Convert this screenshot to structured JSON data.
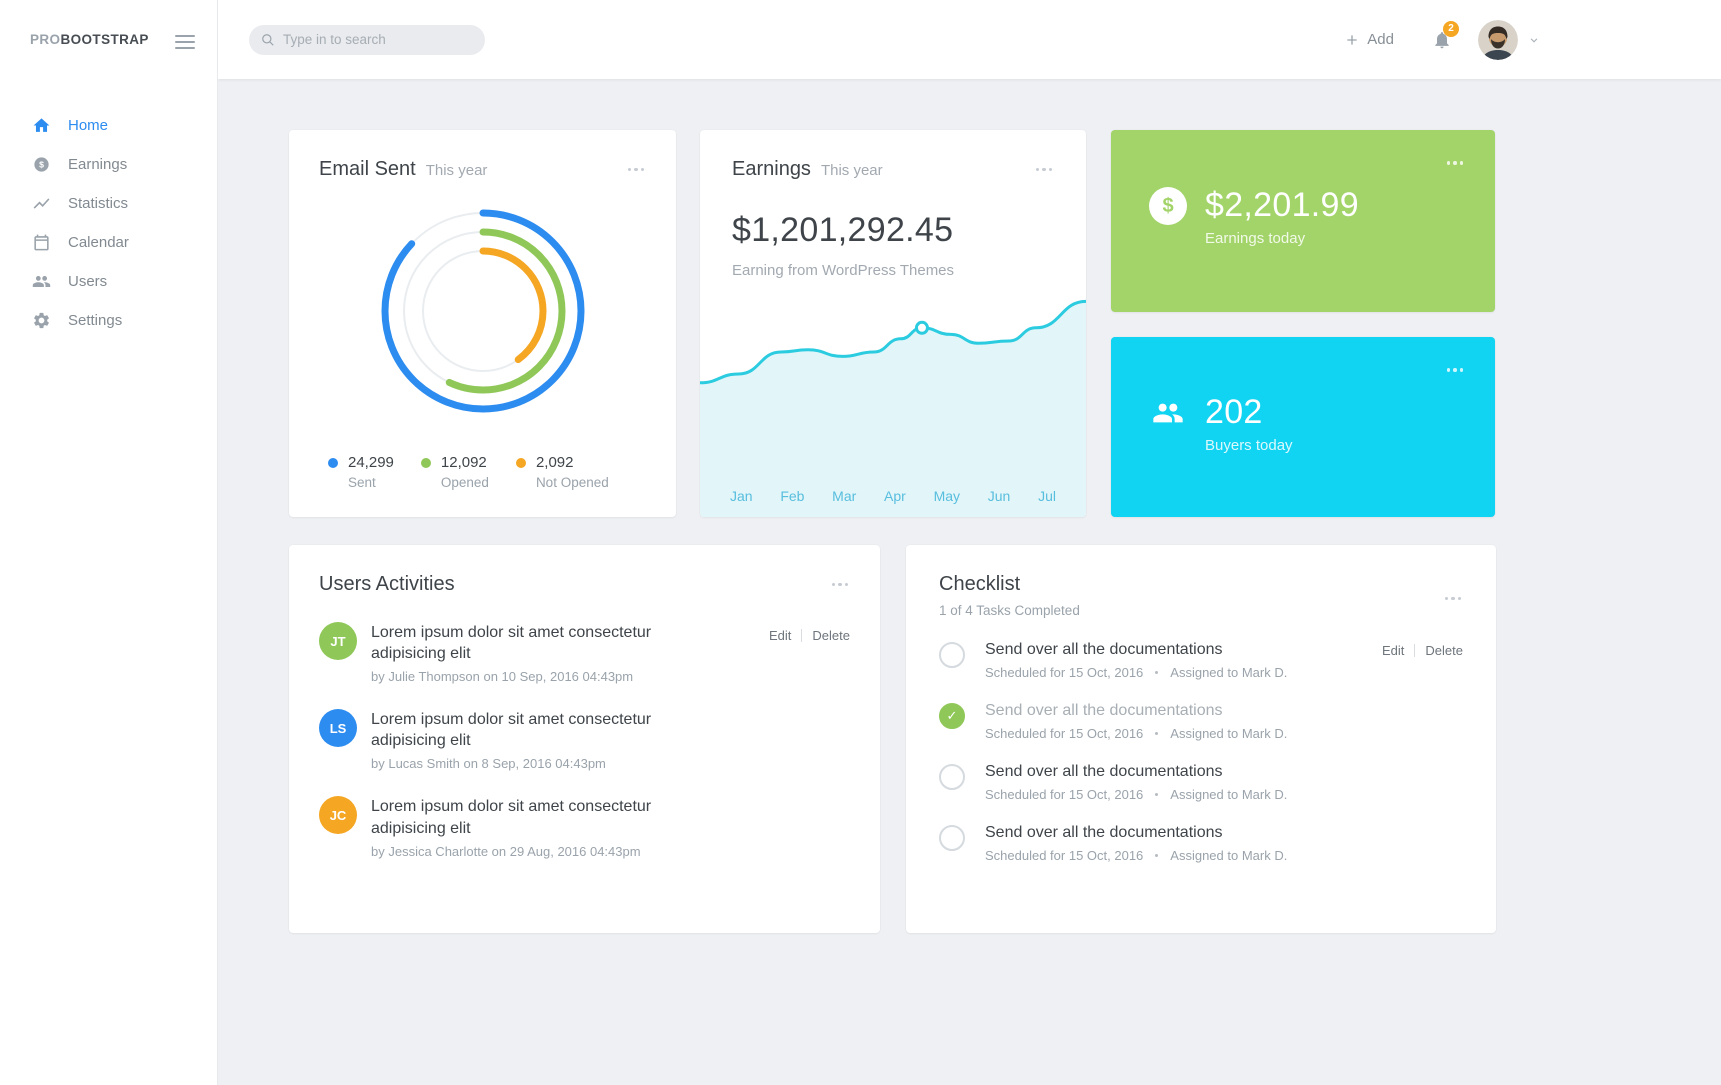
{
  "brand": {
    "pro": "PRO",
    "bold": "BOOTSTRAP"
  },
  "colors": {
    "accent_blue": "#2d8cf0",
    "green": "#8fc858",
    "orange": "#f5a623",
    "line_cyan": "#2bcbe0",
    "fill_cyan": "#e2f6fa"
  },
  "topbar": {
    "search_placeholder": "Type in to search",
    "add_label": "Add",
    "notification_count": "2"
  },
  "sidebar": {
    "items": [
      {
        "label": "Home",
        "active": true
      },
      {
        "label": "Earnings",
        "active": false
      },
      {
        "label": "Statistics",
        "active": false
      },
      {
        "label": "Calendar",
        "active": false
      },
      {
        "label": "Users",
        "active": false
      },
      {
        "label": "Settings",
        "active": false
      }
    ]
  },
  "email_sent": {
    "title": "Email Sent",
    "subtitle": "This year",
    "legend": [
      {
        "value": "24,299",
        "label": "Sent",
        "color": "#2d8cf0"
      },
      {
        "value": "12,092",
        "label": "Opened",
        "color": "#8fc858"
      },
      {
        "value": "2,092",
        "label": "Not Opened",
        "color": "#f5a623"
      }
    ]
  },
  "earnings_card": {
    "title": "Earnings",
    "subtitle": "This year",
    "amount": "$1,201,292.45",
    "caption": "Earning from WordPress Themes",
    "months": [
      "Jan",
      "Feb",
      "Mar",
      "Apr",
      "May",
      "Jun",
      "Jul"
    ]
  },
  "stat_cards": [
    {
      "value": "$2,201.99",
      "label": "Earnings today",
      "bg": "#a3d469"
    },
    {
      "value": "202",
      "label": "Buyers today",
      "bg": "#11d3f2"
    }
  ],
  "activities": {
    "title": "Users Activities",
    "edit_label": "Edit",
    "delete_label": "Delete",
    "items": [
      {
        "initials": "JT",
        "color": "#8fc858",
        "text": "Lorem ipsum dolor sit amet consectetur adipisicing elit",
        "meta": "by Julie Thompson on 10 Sep, 2016 04:43pm"
      },
      {
        "initials": "LS",
        "color": "#2d8cf0",
        "text": "Lorem ipsum dolor sit amet consectetur adipisicing elit",
        "meta": "by Lucas Smith on 8 Sep, 2016 04:43pm"
      },
      {
        "initials": "JC",
        "color": "#f5a623",
        "text": "Lorem ipsum dolor sit amet consectetur adipisicing elit",
        "meta": "by Jessica Charlotte on 29 Aug, 2016 04:43pm"
      }
    ]
  },
  "checklist": {
    "title": "Checklist",
    "subtitle": "1 of 4 Tasks Completed",
    "edit_label": "Edit",
    "delete_label": "Delete",
    "items": [
      {
        "title": "Send over all the documentations",
        "scheduled": "Scheduled for 15 Oct, 2016",
        "assigned": "Assigned to Mark D.",
        "checked": false
      },
      {
        "title": "Send over all the documentations",
        "scheduled": "Scheduled for 15 Oct, 2016",
        "assigned": "Assigned to Mark D.",
        "checked": true
      },
      {
        "title": "Send over all the documentations",
        "scheduled": "Scheduled for 15 Oct, 2016",
        "assigned": "Assigned to Mark D.",
        "checked": false
      },
      {
        "title": "Send over all the documentations",
        "scheduled": "Scheduled for 15 Oct, 2016",
        "assigned": "Assigned to Mark D.",
        "checked": false
      }
    ]
  },
  "icons": {
    "dollar": "$",
    "check": "✓"
  },
  "chart_data": [
    {
      "type": "donut",
      "title": "Email Sent This year",
      "series": [
        {
          "name": "Sent",
          "value": 24299,
          "fraction": 0.87,
          "color": "#2d8cf0"
        },
        {
          "name": "Opened",
          "value": 12092,
          "fraction": 0.57,
          "color": "#8fc858"
        },
        {
          "name": "Not Opened",
          "value": 2092,
          "fraction": 0.4,
          "color": "#f5a623"
        }
      ],
      "track_color": "#e9edf0"
    },
    {
      "type": "area",
      "title": "Earnings This year",
      "x": [
        "Jan",
        "Feb",
        "Mar",
        "Apr",
        "May",
        "Jun",
        "Jul"
      ],
      "points": [
        [
          0,
          0.39
        ],
        [
          0.1,
          0.35
        ],
        [
          0.21,
          0.25
        ],
        [
          0.28,
          0.24
        ],
        [
          0.37,
          0.27
        ],
        [
          0.45,
          0.25
        ],
        [
          0.52,
          0.19
        ],
        [
          0.575,
          0.14
        ],
        [
          0.65,
          0.17
        ],
        [
          0.72,
          0.21
        ],
        [
          0.8,
          0.2
        ],
        [
          0.87,
          0.14
        ],
        [
          1,
          0.02
        ]
      ],
      "marker_index": 7,
      "line_color": "#2bcbe0",
      "fill_color": "#e2f6fa"
    }
  ]
}
